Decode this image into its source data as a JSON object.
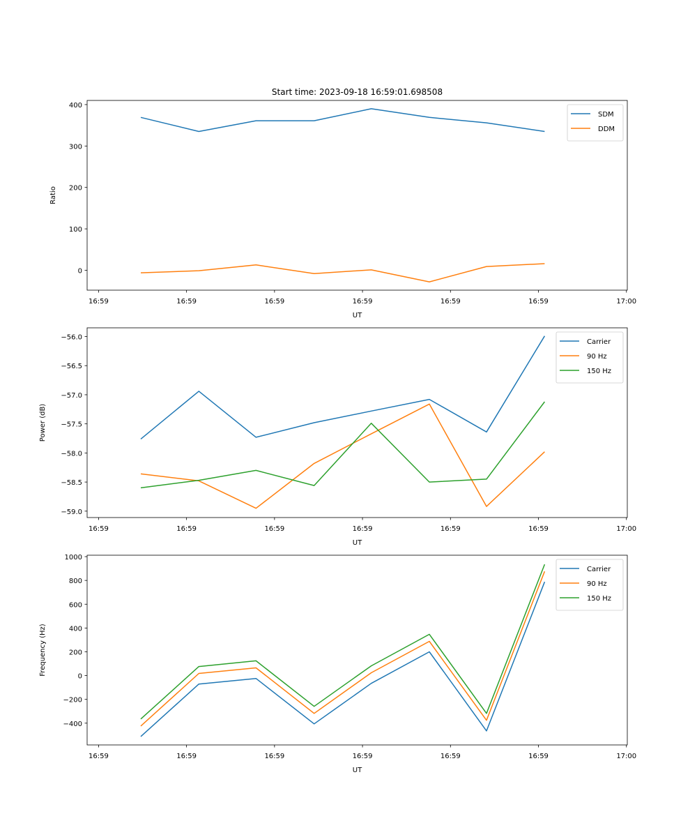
{
  "chart_data": [
    {
      "type": "line",
      "title": "Start time: 2023-09-18 16:59:01.698508",
      "xlabel": "UT",
      "ylabel": "Ratio",
      "x_units": "seconds after 16:59:00",
      "x": [
        4.8,
        11.4,
        17.9,
        24.5,
        31.0,
        37.6,
        44.1,
        50.7
      ],
      "xlim": [
        -1.3,
        60.1
      ],
      "xticks": [
        0,
        10,
        20,
        30,
        40,
        50,
        60
      ],
      "xtick_labels": [
        "16:59",
        "16:59",
        "16:59",
        "16:59",
        "16:59",
        "16:59",
        "17:00"
      ],
      "ylim": [
        -48,
        410
      ],
      "yticks": [
        0,
        100,
        200,
        300,
        400
      ],
      "ytick_labels": [
        "0",
        "100",
        "200",
        "300",
        "400"
      ],
      "legend": "top-right",
      "grid": false,
      "series": [
        {
          "name": "SDM",
          "color": "#1f77b4",
          "values": [
            369,
            335,
            361,
            361,
            390,
            369,
            356,
            335
          ]
        },
        {
          "name": "DDM",
          "color": "#ff7f0e",
          "values": [
            -6,
            -1,
            13,
            -8,
            1,
            -28,
            9,
            16
          ]
        }
      ]
    },
    {
      "type": "line",
      "title": "",
      "xlabel": "UT",
      "ylabel": "Power (dB)",
      "x_units": "seconds after 16:59:00",
      "x": [
        4.8,
        11.4,
        17.9,
        24.5,
        31.0,
        37.6,
        44.1,
        50.7
      ],
      "xlim": [
        -1.3,
        60.1
      ],
      "xticks": [
        0,
        10,
        20,
        30,
        40,
        50,
        60
      ],
      "xtick_labels": [
        "16:59",
        "16:59",
        "16:59",
        "16:59",
        "16:59",
        "16:59",
        "17:00"
      ],
      "ylim": [
        -59.11,
        -55.85
      ],
      "yticks": [
        -59.0,
        -58.5,
        -58.0,
        -57.5,
        -57.0,
        -56.5,
        -56.0
      ],
      "ytick_labels": [
        "−59.0",
        "−58.5",
        "−58.0",
        "−57.5",
        "−57.0",
        "−56.5",
        "−56.0"
      ],
      "legend": "top-right",
      "grid": false,
      "series": [
        {
          "name": "Carrier",
          "color": "#1f77b4",
          "values": [
            -57.76,
            -56.94,
            -57.73,
            -57.48,
            -57.28,
            -57.08,
            -57.64,
            -55.99
          ]
        },
        {
          "name": "90 Hz",
          "color": "#ff7f0e",
          "values": [
            -58.36,
            -58.48,
            -58.95,
            -58.18,
            -57.67,
            -57.16,
            -58.92,
            -57.98
          ]
        },
        {
          "name": "150 Hz",
          "color": "#2ca02c",
          "values": [
            -58.6,
            -58.47,
            -58.3,
            -58.56,
            -57.49,
            -58.5,
            -58.45,
            -57.12
          ]
        }
      ]
    },
    {
      "type": "line",
      "title": "",
      "xlabel": "UT",
      "ylabel": "Frequency (Hz)",
      "x_units": "seconds after 16:59:00",
      "x": [
        4.8,
        11.4,
        17.9,
        24.5,
        31.0,
        37.6,
        44.1,
        50.7
      ],
      "xlim": [
        -1.3,
        60.1
      ],
      "xticks": [
        0,
        10,
        20,
        30,
        40,
        50,
        60
      ],
      "xtick_labels": [
        "16:59",
        "16:59",
        "16:59",
        "16:59",
        "16:59",
        "16:59",
        "17:00"
      ],
      "ylim": [
        -583,
        1012
      ],
      "yticks": [
        -400,
        -200,
        0,
        200,
        400,
        600,
        800,
        1000
      ],
      "ytick_labels": [
        "−400",
        "−200",
        "0",
        "200",
        "400",
        "600",
        "800",
        "1000"
      ],
      "legend": "top-right",
      "grid": false,
      "series": [
        {
          "name": "Carrier",
          "color": "#1f77b4",
          "values": [
            -512,
            -71,
            -24,
            -406,
            -65,
            200,
            -465,
            788
          ]
        },
        {
          "name": "90 Hz",
          "color": "#ff7f0e",
          "values": [
            -424,
            18,
            65,
            -318,
            24,
            288,
            -376,
            876
          ]
        },
        {
          "name": "150 Hz",
          "color": "#2ca02c",
          "values": [
            -365,
            76,
            124,
            -259,
            82,
            347,
            -318,
            935
          ]
        }
      ]
    }
  ]
}
